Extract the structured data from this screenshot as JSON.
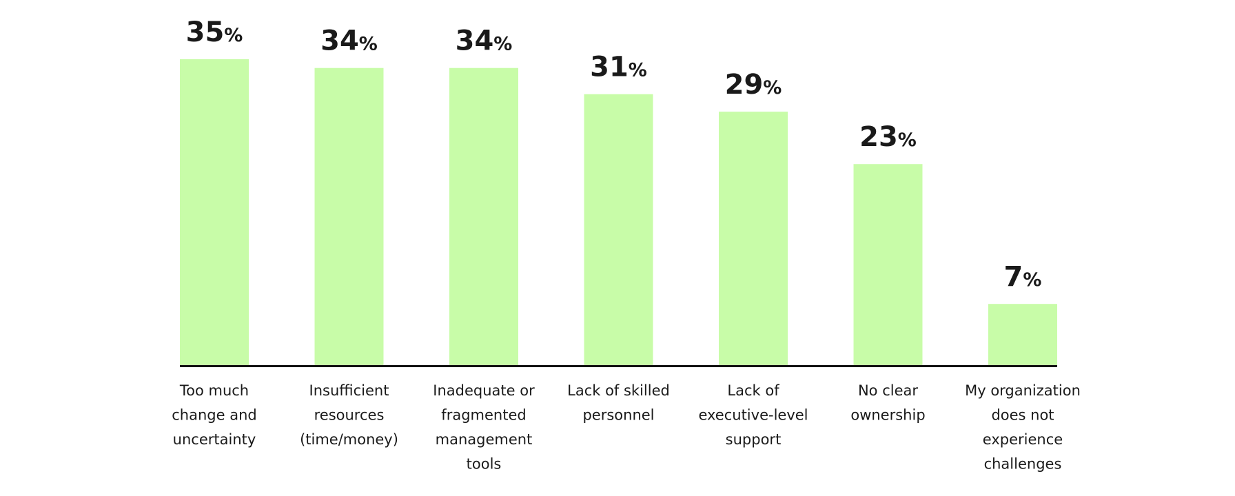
{
  "chart_data": {
    "type": "bar",
    "title": "",
    "xlabel": "",
    "ylabel": "",
    "value_suffix": "%",
    "ylim": [
      0,
      35
    ],
    "bar_color": "#c8fca8",
    "axis_color": "#111111",
    "grid": false,
    "categories": [
      [
        "Too much",
        "change and",
        "uncertainty"
      ],
      [
        "Insufficient",
        "resources",
        "(time/money)"
      ],
      [
        "Inadequate or",
        "fragmented",
        "management",
        "tools"
      ],
      [
        "Lack of skilled",
        "personnel"
      ],
      [
        "Lack of",
        "executive-level",
        "support"
      ],
      [
        "No clear",
        "ownership"
      ],
      [
        "My organization",
        "does not",
        "experience",
        "challenges"
      ]
    ],
    "values": [
      35,
      34,
      34,
      31,
      29,
      23,
      7
    ]
  }
}
